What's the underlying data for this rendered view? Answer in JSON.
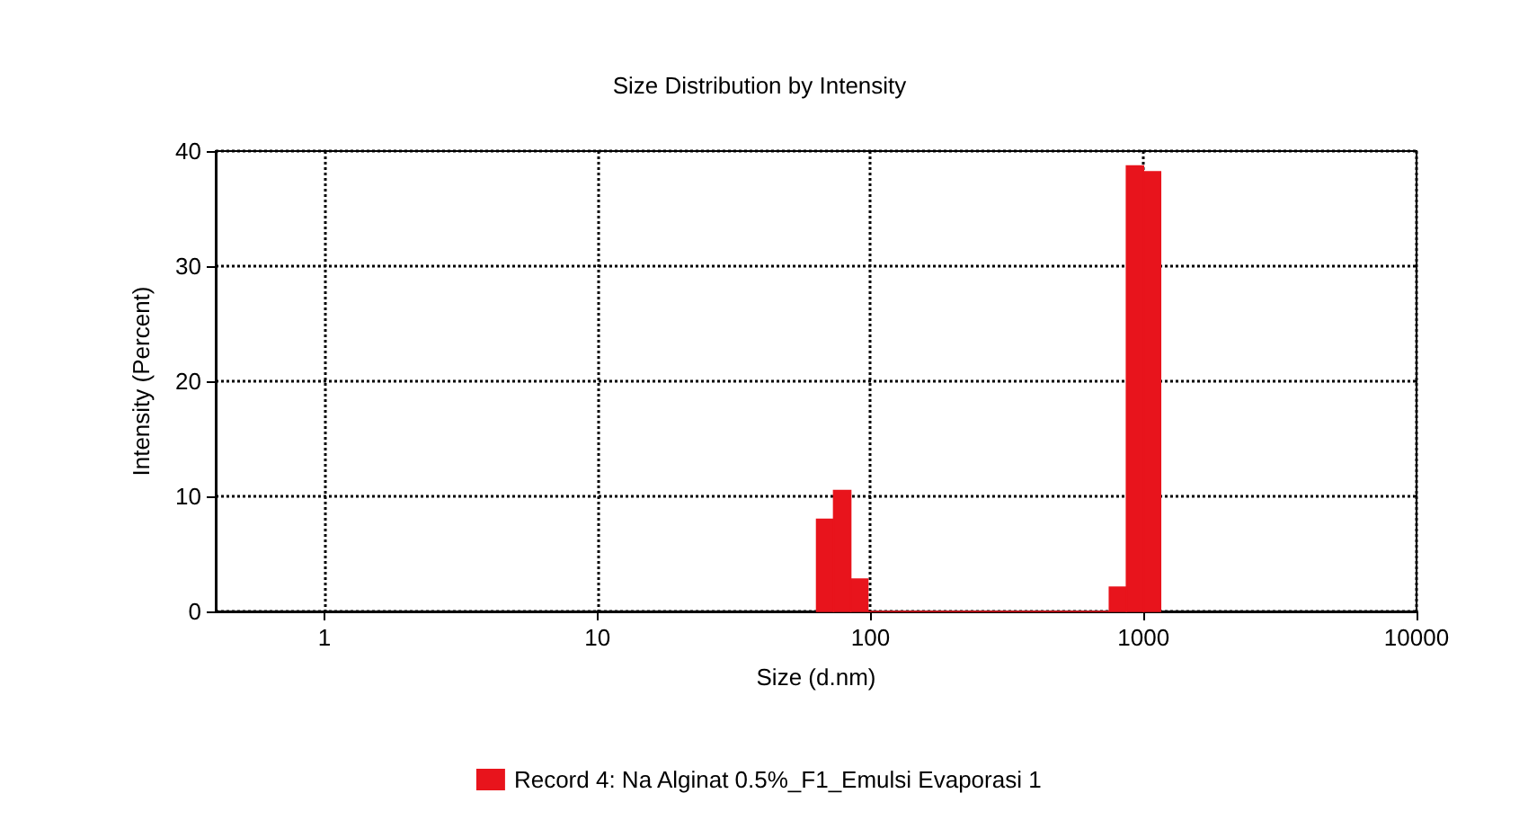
{
  "chart_data": {
    "type": "histogram",
    "title": "Size Distribution by Intensity",
    "xlabel": "Size (d.nm)",
    "ylabel": "Intensity (Percent)",
    "bins": [
      63.5,
      73.3,
      84.7,
      97.8,
      750,
      866,
      1000,
      1155
    ],
    "series": [
      {
        "name": "Record 4: Na Alginat 0.5%_F1_Emulsi Evaporasi 1",
        "color": "#e8141c",
        "values": [
          8.0,
          10.5,
          2.8,
          0,
          2.1,
          38.7,
          38.2
        ]
      }
    ],
    "log": "x",
    "xlim": [
      0.4,
      10000
    ],
    "xticks": [
      1,
      10,
      100,
      1000,
      10000
    ],
    "ylim": [
      0,
      40
    ],
    "yticks": [
      0,
      10,
      20,
      30,
      40
    ],
    "grid": true,
    "legend": "bottom"
  }
}
